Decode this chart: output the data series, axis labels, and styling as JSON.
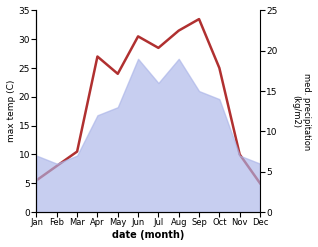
{
  "months": [
    "Jan",
    "Feb",
    "Mar",
    "Apr",
    "May",
    "Jun",
    "Jul",
    "Aug",
    "Sep",
    "Oct",
    "Nov",
    "Dec"
  ],
  "temperature": [
    5.5,
    8.0,
    10.5,
    27.0,
    24.0,
    30.5,
    28.5,
    31.5,
    33.5,
    25.0,
    10.0,
    5.0
  ],
  "precipitation": [
    7.0,
    6.0,
    7.0,
    12.0,
    13.0,
    19.0,
    16.0,
    19.0,
    15.0,
    14.0,
    7.0,
    6.0
  ],
  "temp_ylim": [
    0,
    35
  ],
  "precip_ylim": [
    0,
    25
  ],
  "temp_yticks": [
    0,
    5,
    10,
    15,
    20,
    25,
    30,
    35
  ],
  "precip_yticks": [
    0,
    5,
    10,
    15,
    20,
    25
  ],
  "ylabel_left": "max temp (C)",
  "ylabel_right": "med. precipitation\n(kg/m2)",
  "xlabel": "date (month)",
  "line_color": "#b03030",
  "fill_color": "#aab4e8",
  "fill_alpha": 0.65,
  "line_width": 1.8,
  "bg_color": "#ffffff"
}
